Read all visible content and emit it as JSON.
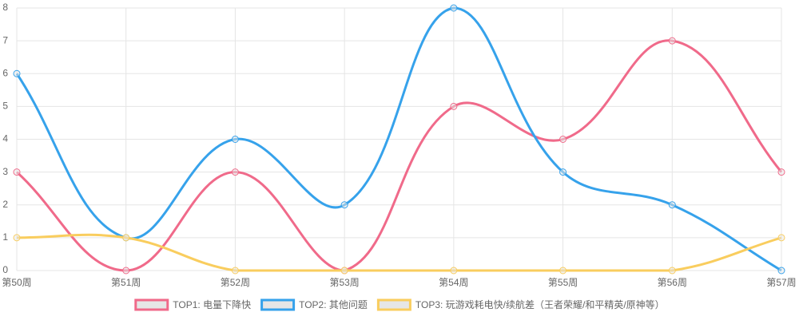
{
  "chart_data": {
    "type": "line",
    "categories": [
      "第50周",
      "第51周",
      "第52周",
      "第53周",
      "第54周",
      "第55周",
      "第56周",
      "第57周"
    ],
    "series": [
      {
        "name": "TOP1: 电量下降快",
        "color": "#f06a8a",
        "values": [
          3,
          0,
          3,
          0,
          5,
          4,
          7,
          3
        ]
      },
      {
        "name": "TOP2: 其他问题",
        "color": "#36a2eb",
        "values": [
          6,
          1,
          4,
          2,
          8,
          3,
          2,
          0
        ]
      },
      {
        "name": "TOP3: 玩游戏耗电快/续航差（王者荣耀/和平精英/原神等）",
        "color": "#f9cd5e",
        "values": [
          1,
          1,
          0,
          0,
          0,
          0,
          0,
          1
        ]
      }
    ],
    "ylim": [
      0,
      8
    ],
    "yticks": [
      0,
      1,
      2,
      3,
      4,
      5,
      6,
      7,
      8
    ],
    "grid": true,
    "legend": "bottom"
  }
}
